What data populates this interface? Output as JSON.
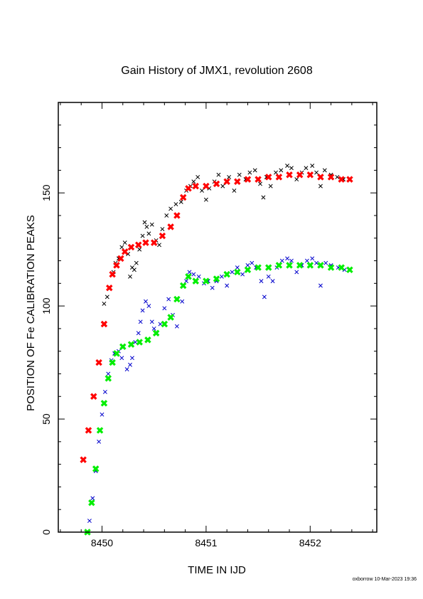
{
  "chart_data": {
    "type": "scatter",
    "title": "Gain History of JMX1, revolution 2608",
    "xlabel": "TIME IN IJD",
    "ylabel": "POSITION OF Fe CALIBRATION PEAKS",
    "xlim": [
      8449.58,
      8452.64
    ],
    "ylim": [
      0,
      190
    ],
    "x_ticks": [
      8450,
      8451,
      8452
    ],
    "y_ticks": [
      0,
      50,
      100,
      150
    ],
    "grid": false,
    "legend": "none",
    "series": [
      {
        "color": "#000000",
        "marker": "x",
        "points": [
          [
            8450.02,
            101
          ],
          [
            8450.05,
            104
          ],
          [
            8450.08,
            108
          ],
          [
            8450.11,
            115
          ],
          [
            8450.13,
            119
          ],
          [
            8450.16,
            121
          ],
          [
            8450.19,
            126
          ],
          [
            8450.22,
            128
          ],
          [
            8450.25,
            123
          ],
          [
            8450.27,
            113
          ],
          [
            8450.29,
            117
          ],
          [
            8450.31,
            116
          ],
          [
            8450.33,
            119
          ],
          [
            8450.36,
            125
          ],
          [
            8450.39,
            131
          ],
          [
            8450.41,
            137
          ],
          [
            8450.43,
            135
          ],
          [
            8450.45,
            132
          ],
          [
            8450.48,
            136
          ],
          [
            8450.52,
            129
          ],
          [
            8450.55,
            127
          ],
          [
            8450.58,
            134
          ],
          [
            8450.62,
            140
          ],
          [
            8450.66,
            143
          ],
          [
            8450.71,
            145
          ],
          [
            8450.76,
            146
          ],
          [
            8450.81,
            151
          ],
          [
            8450.85,
            153
          ],
          [
            8450.88,
            155
          ],
          [
            8450.92,
            157
          ],
          [
            8450.96,
            151
          ],
          [
            8451.0,
            147
          ],
          [
            8451.03,
            152
          ],
          [
            8451.08,
            155
          ],
          [
            8451.12,
            158
          ],
          [
            8451.16,
            153
          ],
          [
            8451.22,
            157
          ],
          [
            8451.27,
            151
          ],
          [
            8451.32,
            158
          ],
          [
            8451.38,
            156
          ],
          [
            8451.42,
            159
          ],
          [
            8451.47,
            160
          ],
          [
            8451.52,
            154
          ],
          [
            8451.55,
            148
          ],
          [
            8451.58,
            157
          ],
          [
            8451.62,
            153
          ],
          [
            8451.67,
            159
          ],
          [
            8451.72,
            160
          ],
          [
            8451.78,
            162
          ],
          [
            8451.82,
            161
          ],
          [
            8451.87,
            156
          ],
          [
            8451.92,
            159
          ],
          [
            8451.96,
            161
          ],
          [
            8452.02,
            162
          ],
          [
            8452.06,
            159
          ],
          [
            8452.1,
            153
          ],
          [
            8452.14,
            160
          ],
          [
            8452.2,
            158
          ],
          [
            8452.26,
            157
          ],
          [
            8452.32,
            156
          ],
          [
            8452.38,
            156
          ]
        ]
      },
      {
        "color": "#0000cc",
        "marker": "x",
        "points": [
          [
            8449.88,
            5
          ],
          [
            8449.91,
            15
          ],
          [
            8449.94,
            27
          ],
          [
            8449.97,
            40
          ],
          [
            8450.0,
            52
          ],
          [
            8450.03,
            62
          ],
          [
            8450.06,
            70
          ],
          [
            8450.09,
            76
          ],
          [
            8450.12,
            79
          ],
          [
            8450.16,
            80
          ],
          [
            8450.19,
            77
          ],
          [
            8450.21,
            82
          ],
          [
            8450.24,
            72
          ],
          [
            8450.27,
            74
          ],
          [
            8450.29,
            77
          ],
          [
            8450.32,
            84
          ],
          [
            8450.35,
            88
          ],
          [
            8450.37,
            93
          ],
          [
            8450.39,
            98
          ],
          [
            8450.42,
            102
          ],
          [
            8450.45,
            100
          ],
          [
            8450.48,
            93
          ],
          [
            8450.5,
            90
          ],
          [
            8450.53,
            88
          ],
          [
            8450.56,
            92
          ],
          [
            8450.6,
            99
          ],
          [
            8450.64,
            103
          ],
          [
            8450.68,
            96
          ],
          [
            8450.72,
            91
          ],
          [
            8450.77,
            102
          ],
          [
            8450.81,
            111
          ],
          [
            8450.84,
            115
          ],
          [
            8450.88,
            114
          ],
          [
            8450.93,
            113
          ],
          [
            8450.98,
            110
          ],
          [
            8451.02,
            111
          ],
          [
            8451.06,
            108
          ],
          [
            8451.1,
            111
          ],
          [
            8451.15,
            113
          ],
          [
            8451.2,
            109
          ],
          [
            8451.25,
            115
          ],
          [
            8451.3,
            117
          ],
          [
            8451.35,
            114
          ],
          [
            8451.4,
            118
          ],
          [
            8451.44,
            119
          ],
          [
            8451.48,
            117
          ],
          [
            8451.53,
            111
          ],
          [
            8451.56,
            104
          ],
          [
            8451.6,
            113
          ],
          [
            8451.64,
            111
          ],
          [
            8451.68,
            117
          ],
          [
            8451.73,
            120
          ],
          [
            8451.78,
            121
          ],
          [
            8451.82,
            120
          ],
          [
            8451.87,
            115
          ],
          [
            8451.92,
            118
          ],
          [
            8451.97,
            120
          ],
          [
            8452.02,
            121
          ],
          [
            8452.06,
            119
          ],
          [
            8452.1,
            109
          ],
          [
            8452.15,
            119
          ],
          [
            8452.2,
            118
          ],
          [
            8452.27,
            117
          ],
          [
            8452.33,
            116
          ],
          [
            8452.38,
            116
          ]
        ]
      },
      {
        "color": "#ff0000",
        "marker": "x",
        "points": [
          [
            8449.82,
            32
          ],
          [
            8449.87,
            45
          ],
          [
            8449.92,
            60
          ],
          [
            8449.97,
            75
          ],
          [
            8450.02,
            92
          ],
          [
            8450.07,
            108
          ],
          [
            8450.1,
            114
          ],
          [
            8450.14,
            118
          ],
          [
            8450.18,
            121
          ],
          [
            8450.22,
            124
          ],
          [
            8450.28,
            126
          ],
          [
            8450.35,
            127
          ],
          [
            8450.42,
            128
          ],
          [
            8450.5,
            128
          ],
          [
            8450.58,
            131
          ],
          [
            8450.66,
            135
          ],
          [
            8450.72,
            140
          ],
          [
            8450.78,
            148
          ],
          [
            8450.83,
            152
          ],
          [
            8450.9,
            153
          ],
          [
            8451.0,
            153
          ],
          [
            8451.1,
            154
          ],
          [
            8451.2,
            155
          ],
          [
            8451.3,
            155
          ],
          [
            8451.4,
            156
          ],
          [
            8451.5,
            156
          ],
          [
            8451.6,
            157
          ],
          [
            8451.7,
            157
          ],
          [
            8451.8,
            158
          ],
          [
            8451.9,
            158
          ],
          [
            8452.0,
            158
          ],
          [
            8452.1,
            157
          ],
          [
            8452.2,
            157
          ],
          [
            8452.3,
            156
          ],
          [
            8452.38,
            156
          ]
        ]
      },
      {
        "color": "#00ee00",
        "marker": "x",
        "points": [
          [
            8449.86,
            0
          ],
          [
            8449.9,
            13
          ],
          [
            8449.94,
            28
          ],
          [
            8449.98,
            45
          ],
          [
            8450.02,
            57
          ],
          [
            8450.06,
            68
          ],
          [
            8450.1,
            75
          ],
          [
            8450.14,
            79
          ],
          [
            8450.2,
            82
          ],
          [
            8450.28,
            83
          ],
          [
            8450.36,
            84
          ],
          [
            8450.44,
            85
          ],
          [
            8450.52,
            88
          ],
          [
            8450.6,
            92
          ],
          [
            8450.66,
            95
          ],
          [
            8450.72,
            103
          ],
          [
            8450.78,
            109
          ],
          [
            8450.83,
            113
          ],
          [
            8450.9,
            111
          ],
          [
            8451.0,
            111
          ],
          [
            8451.1,
            112
          ],
          [
            8451.2,
            114
          ],
          [
            8451.3,
            115
          ],
          [
            8451.4,
            116
          ],
          [
            8451.5,
            117
          ],
          [
            8451.6,
            117
          ],
          [
            8451.7,
            118
          ],
          [
            8451.8,
            118
          ],
          [
            8451.9,
            118
          ],
          [
            8452.0,
            118
          ],
          [
            8452.1,
            118
          ],
          [
            8452.2,
            117
          ],
          [
            8452.3,
            117
          ],
          [
            8452.38,
            116
          ]
        ]
      }
    ]
  },
  "footer": "oxborrow 10-Mar-2023 19:36"
}
